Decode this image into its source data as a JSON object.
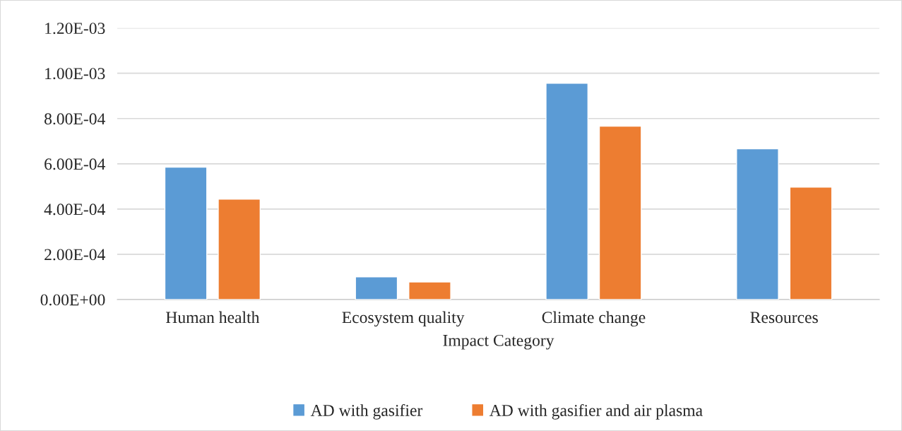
{
  "chart_data": {
    "type": "bar",
    "xlabel": "Impact Category",
    "categories": [
      "Human health",
      "Ecosystem quality",
      "Climate change",
      "Resources"
    ],
    "series": [
      {
        "name": "AD with gasifier",
        "color": "#5b9bd5",
        "values": [
          0.000585,
          0.0001,
          0.000956,
          0.000666
        ]
      },
      {
        "name": "AD with gasifier and air plasma",
        "color": "#ed7d31",
        "values": [
          0.000444,
          7.8e-05,
          0.000766,
          0.000497
        ]
      }
    ],
    "ylim": [
      0,
      0.0012
    ],
    "yticks": [
      {
        "value": 0,
        "label": "0.00E+00"
      },
      {
        "value": 0.0002,
        "label": "2.00E-04"
      },
      {
        "value": 0.0004,
        "label": "4.00E-04"
      },
      {
        "value": 0.0006,
        "label": "6.00E-04"
      },
      {
        "value": 0.0008,
        "label": "8.00E-04"
      },
      {
        "value": 0.001,
        "label": "1.00E-03"
      },
      {
        "value": 0.0012,
        "label": "1.20E-03"
      }
    ],
    "grid": "y",
    "legend": "bottom"
  }
}
